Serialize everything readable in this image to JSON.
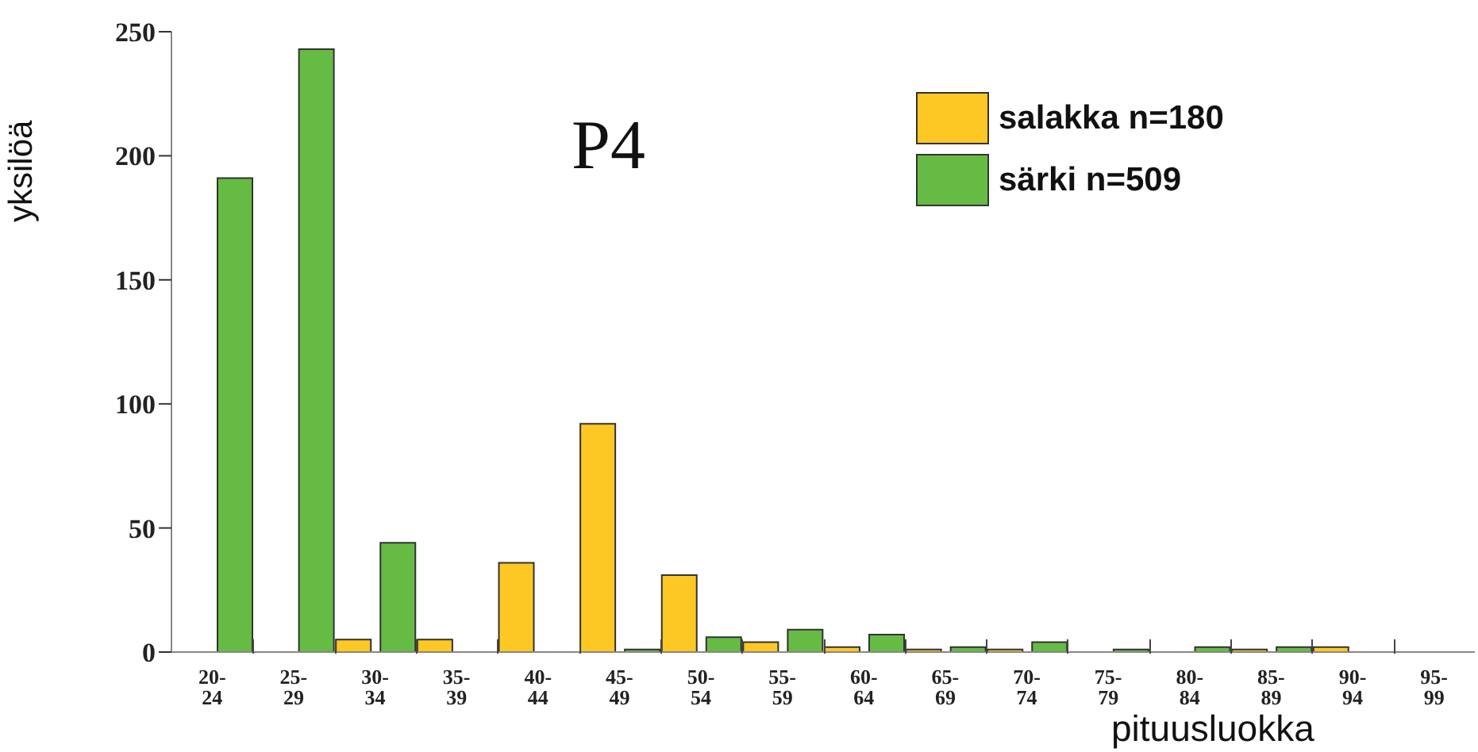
{
  "chart_data": {
    "type": "bar",
    "title": "P4",
    "xlabel": "pituusluokka",
    "ylabel": "yksilöä",
    "categories": [
      "20-24",
      "25-29",
      "30-34",
      "35-39",
      "40-44",
      "45-49",
      "50-54",
      "55-59",
      "60-64",
      "65-69",
      "70-74",
      "75-79",
      "80-84",
      "85-89",
      "90-94",
      "95-99"
    ],
    "series": [
      {
        "name": "salakka n=180",
        "color": "#fdc823",
        "values": [
          0,
          0,
          5,
          5,
          36,
          92,
          31,
          4,
          2,
          1,
          1,
          0,
          0,
          1,
          2,
          0
        ]
      },
      {
        "name": "särki n=509",
        "color": "#66bb44",
        "values": [
          191,
          243,
          44,
          0,
          0,
          1,
          6,
          9,
          7,
          2,
          4,
          1,
          2,
          2,
          0,
          0
        ]
      }
    ],
    "ylim": [
      0,
      250
    ],
    "yticks": [
      0,
      50,
      100,
      150,
      200,
      250
    ],
    "grid": false,
    "legend": "top right"
  }
}
